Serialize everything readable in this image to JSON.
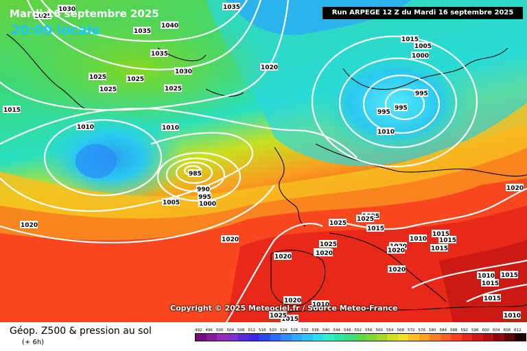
{
  "header": {
    "date": "Mardi 16 septembre 2025",
    "local_time": "20:00 locale",
    "run_info": "Run ARPEGE 12 Z du Mardi 16 septembre 2025"
  },
  "copyright": "Copyright © 2025 Meteociel.fr / Source Meteo-France",
  "footer": {
    "product": "Géop. Z500 & pression au sol",
    "forecast_step": "(+ 6h)"
  },
  "legend": {
    "title": "",
    "values": [
      "492",
      "496",
      "500",
      "504",
      "508",
      "512",
      "516",
      "520",
      "524",
      "528",
      "532",
      "536",
      "540",
      "544",
      "548",
      "552",
      "556",
      "560",
      "564",
      "568",
      "572",
      "576",
      "580",
      "584",
      "588",
      "592",
      "596",
      "600",
      "604",
      "608",
      "612"
    ],
    "colors": [
      "#7a0a82",
      "#8a1aa0",
      "#9a2ab8",
      "#8030c8",
      "#5a2ad8",
      "#3a2ae8",
      "#2a48f0",
      "#2a6af8",
      "#2a8cf8",
      "#2aaaf8",
      "#2ac8f8",
      "#2ae0f0",
      "#2af0d0",
      "#2ae8a8",
      "#3ae080",
      "#5ad850",
      "#80d830",
      "#a8d820",
      "#d0e020",
      "#f0e020",
      "#f8c020",
      "#f8a020",
      "#f88020",
      "#f86020",
      "#f84020",
      "#e82818",
      "#d01818",
      "#b81010",
      "#900810",
      "#600808",
      "#200404"
    ]
  },
  "map": {
    "region": "Europe / North Atlantic",
    "pressure_labels": [
      {
        "text": "1030"
      },
      {
        "text": "1025"
      },
      {
        "text": "1035"
      },
      {
        "text": "1040"
      },
      {
        "text": "1035"
      },
      {
        "text": "1035"
      },
      {
        "text": "1030"
      },
      {
        "text": "1025"
      },
      {
        "text": "1025"
      },
      {
        "text": "1025"
      },
      {
        "text": "1025"
      },
      {
        "text": "1020"
      },
      {
        "text": "1015"
      },
      {
        "text": "1010"
      },
      {
        "text": "1010"
      },
      {
        "text": "1010"
      },
      {
        "text": "1005"
      },
      {
        "text": "1000"
      },
      {
        "text": "995"
      },
      {
        "text": "995"
      },
      {
        "text": "995"
      },
      {
        "text": "985"
      },
      {
        "text": "990"
      },
      {
        "text": "995"
      },
      {
        "text": "1000"
      },
      {
        "text": "1005"
      },
      {
        "text": "1015"
      },
      {
        "text": "1020"
      },
      {
        "text": "1020"
      },
      {
        "text": "1020"
      },
      {
        "text": "1025"
      },
      {
        "text": "1025"
      },
      {
        "text": "1025"
      },
      {
        "text": "1015"
      },
      {
        "text": "1025"
      },
      {
        "text": "1020"
      },
      {
        "text": "1020"
      },
      {
        "text": "1010"
      },
      {
        "text": "1015"
      },
      {
        "text": "1015"
      },
      {
        "text": "1015"
      },
      {
        "text": "1020"
      },
      {
        "text": "1020"
      },
      {
        "text": "1020"
      },
      {
        "text": "1015"
      },
      {
        "text": "1015"
      },
      {
        "text": "1010"
      },
      {
        "text": "1015"
      },
      {
        "text": "1010"
      },
      {
        "text": "1015"
      },
      {
        "text": "1010"
      },
      {
        "text": "1020"
      },
      {
        "text": "1020"
      },
      {
        "text": "1025"
      }
    ]
  }
}
